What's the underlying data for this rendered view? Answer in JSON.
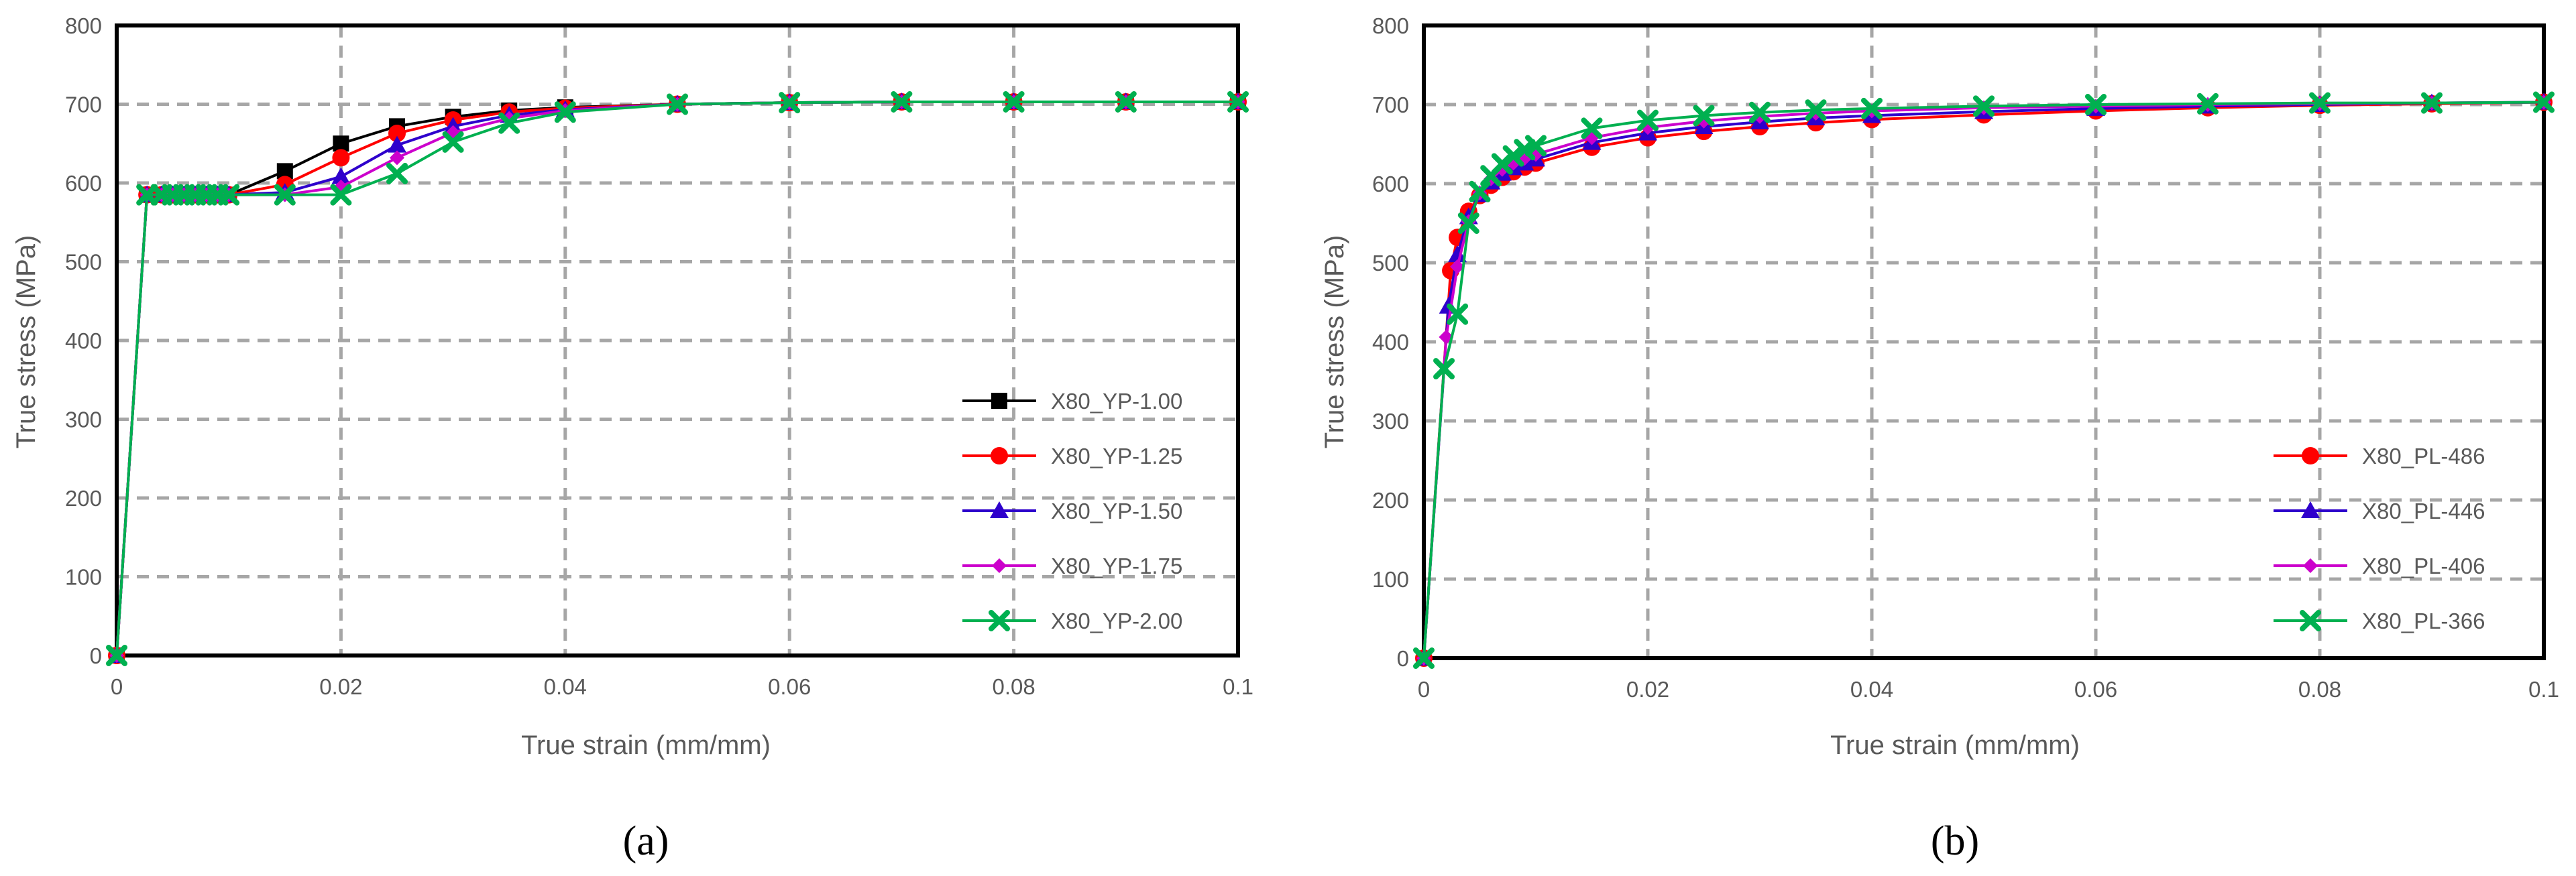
{
  "chart_data": [
    {
      "type": "line",
      "panel_label": "(a)",
      "xlabel": "True strain (mm/mm)",
      "ylabel": "True stress (MPa)",
      "xlim": [
        0,
        0.1
      ],
      "ylim": [
        0,
        800
      ],
      "x_ticks": [
        0,
        0.02,
        0.04,
        0.06,
        0.08,
        0.1
      ],
      "y_ticks": [
        0,
        100,
        200,
        300,
        400,
        500,
        600,
        700,
        800
      ],
      "x_tick_labels": [
        "0",
        "0.02",
        "0.04",
        "0.06",
        "0.08",
        "0.1"
      ],
      "y_tick_labels": [
        "0",
        "100",
        "200",
        "300",
        "400",
        "500",
        "600",
        "700",
        "800"
      ],
      "grid": true,
      "legend_position": "right",
      "series": [
        {
          "name": "X80_YP-1.00",
          "color": "#000000",
          "marker": "square",
          "x": [
            0,
            0.0027,
            0.004,
            0.005,
            0.006,
            0.007,
            0.008,
            0.009,
            0.01,
            0.015,
            0.02,
            0.025,
            0.03,
            0.035,
            0.04,
            0.05,
            0.06,
            0.07,
            0.08,
            0.09,
            0.1
          ],
          "y": [
            0,
            585,
            585,
            585,
            585,
            585,
            585,
            585,
            585,
            615,
            650,
            672,
            684,
            692,
            696,
            700,
            702,
            703,
            703,
            703,
            703
          ]
        },
        {
          "name": "X80_YP-1.25",
          "color": "#ff0000",
          "marker": "circle",
          "x": [
            0,
            0.0027,
            0.004,
            0.005,
            0.006,
            0.007,
            0.008,
            0.009,
            0.01,
            0.015,
            0.02,
            0.025,
            0.03,
            0.035,
            0.04,
            0.05,
            0.06,
            0.07,
            0.08,
            0.09,
            0.1
          ],
          "y": [
            0,
            585,
            585,
            585,
            585,
            585,
            585,
            585,
            585,
            598,
            632,
            663,
            680,
            690,
            695,
            700,
            702,
            703,
            703,
            703,
            703
          ]
        },
        {
          "name": "X80_YP-1.50",
          "color": "#2e00cc",
          "marker": "triangle",
          "x": [
            0,
            0.0027,
            0.004,
            0.005,
            0.006,
            0.007,
            0.008,
            0.009,
            0.01,
            0.015,
            0.02,
            0.025,
            0.03,
            0.035,
            0.04,
            0.05,
            0.06,
            0.07,
            0.08,
            0.09,
            0.1
          ],
          "y": [
            0,
            585,
            585,
            585,
            585,
            585,
            585,
            585,
            585,
            588,
            608,
            648,
            672,
            686,
            693,
            700,
            702,
            703,
            703,
            703,
            703
          ]
        },
        {
          "name": "X80_YP-1.75",
          "color": "#cc00cc",
          "marker": "diamond",
          "x": [
            0,
            0.0027,
            0.004,
            0.005,
            0.006,
            0.007,
            0.008,
            0.009,
            0.01,
            0.015,
            0.02,
            0.025,
            0.03,
            0.035,
            0.04,
            0.05,
            0.06,
            0.07,
            0.08,
            0.09,
            0.1
          ],
          "y": [
            0,
            585,
            585,
            585,
            585,
            585,
            585,
            585,
            585,
            585,
            595,
            632,
            664,
            682,
            692,
            700,
            702,
            703,
            703,
            703,
            703
          ]
        },
        {
          "name": "X80_YP-2.00",
          "color": "#00b050",
          "marker": "x",
          "x": [
            0,
            0.0027,
            0.004,
            0.005,
            0.006,
            0.007,
            0.008,
            0.009,
            0.01,
            0.015,
            0.02,
            0.025,
            0.03,
            0.035,
            0.04,
            0.05,
            0.06,
            0.07,
            0.08,
            0.09,
            0.1
          ],
          "y": [
            0,
            585,
            585,
            585,
            585,
            585,
            585,
            585,
            585,
            585,
            585,
            612,
            652,
            676,
            690,
            700,
            702,
            703,
            703,
            703,
            703
          ]
        }
      ]
    },
    {
      "type": "line",
      "panel_label": "(b)",
      "xlabel": "True strain (mm/mm)",
      "ylabel": "True stress (MPa)",
      "xlim": [
        0,
        0.1
      ],
      "ylim": [
        0,
        800
      ],
      "x_ticks": [
        0,
        0.02,
        0.04,
        0.06,
        0.08,
        0.1
      ],
      "y_ticks": [
        0,
        100,
        200,
        300,
        400,
        500,
        600,
        700,
        800
      ],
      "x_tick_labels": [
        "0",
        "0.02",
        "0.04",
        "0.06",
        "0.08",
        "0.1"
      ],
      "y_tick_labels": [
        "0",
        "100",
        "200",
        "300",
        "400",
        "500",
        "600",
        "700",
        "800"
      ],
      "grid": true,
      "legend_position": "right",
      "series": [
        {
          "name": "X80_PL-486",
          "color": "#ff0000",
          "marker": "circle",
          "x": [
            0,
            0.0024,
            0.003,
            0.004,
            0.005,
            0.006,
            0.007,
            0.008,
            0.009,
            0.01,
            0.015,
            0.02,
            0.025,
            0.03,
            0.035,
            0.04,
            0.05,
            0.06,
            0.07,
            0.08,
            0.09,
            0.1
          ],
          "y": [
            0,
            490,
            532,
            565,
            585,
            598,
            608,
            615,
            621,
            626,
            646,
            658,
            666,
            672,
            677,
            681,
            687,
            692,
            696,
            699,
            701,
            703
          ]
        },
        {
          "name": "X80_PL-446",
          "color": "#2e00cc",
          "marker": "triangle",
          "x": [
            0,
            0.0022,
            0.003,
            0.004,
            0.005,
            0.006,
            0.007,
            0.008,
            0.009,
            0.01,
            0.015,
            0.02,
            0.025,
            0.03,
            0.035,
            0.04,
            0.05,
            0.06,
            0.07,
            0.08,
            0.09,
            0.1
          ],
          "y": [
            0,
            445,
            510,
            558,
            586,
            602,
            613,
            620,
            626,
            631,
            652,
            664,
            672,
            678,
            683,
            686,
            691,
            695,
            698,
            700,
            702,
            703
          ]
        },
        {
          "name": "X80_PL-406",
          "color": "#cc00cc",
          "marker": "diamond",
          "x": [
            0,
            0.002,
            0.003,
            0.004,
            0.005,
            0.006,
            0.007,
            0.008,
            0.009,
            0.01,
            0.015,
            0.02,
            0.025,
            0.03,
            0.035,
            0.04,
            0.05,
            0.06,
            0.07,
            0.08,
            0.09,
            0.1
          ],
          "y": [
            0,
            406,
            495,
            552,
            588,
            606,
            618,
            626,
            632,
            637,
            658,
            671,
            679,
            685,
            689,
            692,
            696,
            698,
            700,
            701,
            702,
            703
          ]
        },
        {
          "name": "X80_PL-366",
          "color": "#00b050",
          "marker": "x",
          "x": [
            0,
            0.0018,
            0.003,
            0.004,
            0.005,
            0.006,
            0.007,
            0.008,
            0.009,
            0.01,
            0.015,
            0.02,
            0.025,
            0.03,
            0.035,
            0.04,
            0.05,
            0.06,
            0.07,
            0.08,
            0.09,
            0.1
          ],
          "y": [
            0,
            366,
            435,
            550,
            590,
            610,
            625,
            635,
            643,
            648,
            670,
            680,
            686,
            690,
            693,
            695,
            698,
            700,
            701,
            702,
            702,
            703
          ]
        }
      ]
    }
  ]
}
